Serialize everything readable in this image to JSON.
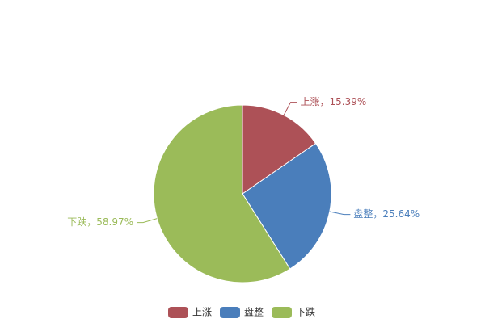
{
  "chart_data": {
    "type": "pie",
    "categories": [
      "上涨",
      "盘整",
      "下跌"
    ],
    "values": [
      15.39,
      25.64,
      58.97
    ],
    "value_labels": [
      "上涨，15.39%",
      "盘整，25.64%",
      "下跌，58.97%"
    ],
    "colors": [
      "#ad5157",
      "#4a7ebb",
      "#9bbb59"
    ],
    "legend": "bottom"
  }
}
